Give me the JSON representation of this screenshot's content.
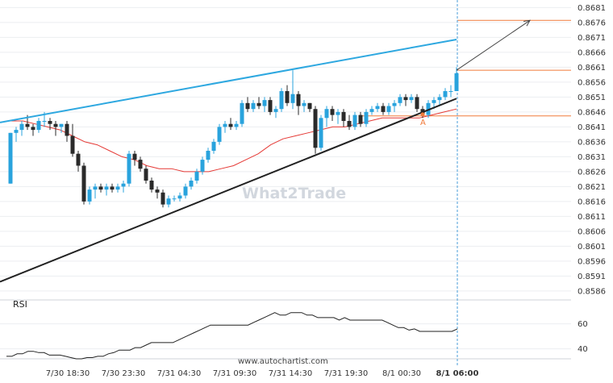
{
  "chart_data": [
    {
      "type": "candlestick",
      "title": "",
      "watermark": "What2Trade",
      "source": "www.autochartist.com",
      "y_ticks": [
        "0.8681",
        "0.8676",
        "0.8671",
        "0.8666",
        "0.8661",
        "0.8656",
        "0.8651",
        "0.8646",
        "0.8641",
        "0.8636",
        "0.8631",
        "0.8626",
        "0.8621",
        "0.8616",
        "0.8611",
        "0.8606",
        "0.8601",
        "0.8596",
        "0.8591",
        "0.8586"
      ],
      "ylim": [
        0.8583,
        0.8683
      ],
      "x_ticks": [
        "7/30 18:30",
        "7/30 23:30",
        "7/31 04:30",
        "7/31 09:30",
        "7/31 14:30",
        "7/31 19:30",
        "8/1 00:30",
        "8/1 06:00"
      ],
      "highlight_tick": "8/1 06:00",
      "candles": [
        [
          0.8622,
          0.8639,
          0.8622,
          0.8639
        ],
        [
          0.8639,
          0.8641,
          0.8636,
          0.864
        ],
        [
          0.864,
          0.8643,
          0.8638,
          0.8642
        ],
        [
          0.8642,
          0.8645,
          0.864,
          0.8641
        ],
        [
          0.8641,
          0.8642,
          0.8638,
          0.864
        ],
        [
          0.864,
          0.8644,
          0.8639,
          0.8643
        ],
        [
          0.8643,
          0.8646,
          0.8641,
          0.8643
        ],
        [
          0.8643,
          0.8644,
          0.864,
          0.8642
        ],
        [
          0.8642,
          0.8643,
          0.8638,
          0.8641
        ],
        [
          0.8641,
          0.8642,
          0.8639,
          0.8642
        ],
        [
          0.8642,
          0.8643,
          0.8636,
          0.8638
        ],
        [
          0.8638,
          0.8642,
          0.8631,
          0.8632
        ],
        [
          0.8632,
          0.8633,
          0.8626,
          0.8628
        ],
        [
          0.8628,
          0.8629,
          0.8615,
          0.8616
        ],
        [
          0.8616,
          0.8621,
          0.8615,
          0.862
        ],
        [
          0.862,
          0.8622,
          0.8617,
          0.8621
        ],
        [
          0.8621,
          0.8622,
          0.8619,
          0.862
        ],
        [
          0.862,
          0.8622,
          0.8618,
          0.8621
        ],
        [
          0.8621,
          0.8622,
          0.8619,
          0.862
        ],
        [
          0.862,
          0.8622,
          0.8619,
          0.8621
        ],
        [
          0.8621,
          0.8623,
          0.8619,
          0.8622
        ],
        [
          0.8622,
          0.8633,
          0.8621,
          0.8632
        ],
        [
          0.8632,
          0.8633,
          0.8628,
          0.863
        ],
        [
          0.863,
          0.8631,
          0.8626,
          0.8627
        ],
        [
          0.8627,
          0.8628,
          0.8622,
          0.8623
        ],
        [
          0.8623,
          0.8624,
          0.8619,
          0.862
        ],
        [
          0.862,
          0.8621,
          0.8617,
          0.8619
        ],
        [
          0.8619,
          0.862,
          0.8614,
          0.8615
        ],
        [
          0.8615,
          0.8618,
          0.8614,
          0.8617
        ],
        [
          0.8617,
          0.8618,
          0.8616,
          0.8617
        ],
        [
          0.8617,
          0.8619,
          0.8616,
          0.8618
        ],
        [
          0.8618,
          0.8622,
          0.8617,
          0.8621
        ],
        [
          0.8621,
          0.8624,
          0.862,
          0.8623
        ],
        [
          0.8623,
          0.8627,
          0.8622,
          0.8626
        ],
        [
          0.8626,
          0.8631,
          0.8625,
          0.863
        ],
        [
          0.863,
          0.8634,
          0.8629,
          0.8633
        ],
        [
          0.8633,
          0.8637,
          0.8632,
          0.8636
        ],
        [
          0.8636,
          0.8642,
          0.8635,
          0.8641
        ],
        [
          0.8641,
          0.8643,
          0.8639,
          0.8642
        ],
        [
          0.8642,
          0.8644,
          0.864,
          0.8641
        ],
        [
          0.8641,
          0.8643,
          0.864,
          0.8642
        ],
        [
          0.8642,
          0.865,
          0.8641,
          0.8649
        ],
        [
          0.8649,
          0.8651,
          0.8646,
          0.8647
        ],
        [
          0.8647,
          0.865,
          0.8646,
          0.8649
        ],
        [
          0.8649,
          0.8651,
          0.8647,
          0.8648
        ],
        [
          0.8648,
          0.8651,
          0.8646,
          0.865
        ],
        [
          0.865,
          0.8651,
          0.8645,
          0.8646
        ],
        [
          0.8646,
          0.8648,
          0.8644,
          0.8647
        ],
        [
          0.8647,
          0.8654,
          0.8646,
          0.8653
        ],
        [
          0.8653,
          0.8655,
          0.8648,
          0.8649
        ],
        [
          0.8649,
          0.866,
          0.8647,
          0.8652
        ],
        [
          0.8652,
          0.8653,
          0.8645,
          0.8648
        ],
        [
          0.8648,
          0.865,
          0.8646,
          0.8649
        ],
        [
          0.8649,
          0.8649,
          0.8646,
          0.8647
        ],
        [
          0.8647,
          0.8648,
          0.8632,
          0.8634
        ],
        [
          0.8634,
          0.8645,
          0.8633,
          0.8644
        ],
        [
          0.8644,
          0.8648,
          0.8641,
          0.8647
        ],
        [
          0.8647,
          0.8648,
          0.8643,
          0.8645
        ],
        [
          0.8645,
          0.8647,
          0.8642,
          0.8646
        ],
        [
          0.8646,
          0.8647,
          0.8641,
          0.8643
        ],
        [
          0.8643,
          0.8645,
          0.864,
          0.8641
        ],
        [
          0.8641,
          0.8646,
          0.864,
          0.8645
        ],
        [
          0.8645,
          0.8646,
          0.8641,
          0.8642
        ],
        [
          0.8642,
          0.8647,
          0.8641,
          0.8646
        ],
        [
          0.8646,
          0.8648,
          0.8645,
          0.8647
        ],
        [
          0.8647,
          0.8649,
          0.8646,
          0.8648
        ],
        [
          0.8648,
          0.8649,
          0.8645,
          0.8646
        ],
        [
          0.8646,
          0.8649,
          0.8645,
          0.8648
        ],
        [
          0.8648,
          0.865,
          0.8646,
          0.8649
        ],
        [
          0.8649,
          0.8652,
          0.8648,
          0.8651
        ],
        [
          0.8651,
          0.8652,
          0.8648,
          0.865
        ],
        [
          0.865,
          0.8652,
          0.8649,
          0.8651
        ],
        [
          0.8651,
          0.8652,
          0.8646,
          0.8647
        ],
        [
          0.8647,
          0.8648,
          0.8644,
          0.8645
        ],
        [
          0.8645,
          0.865,
          0.8644,
          0.8649
        ],
        [
          0.8649,
          0.8651,
          0.8647,
          0.865
        ],
        [
          0.865,
          0.8652,
          0.8648,
          0.8651
        ],
        [
          0.8651,
          0.8654,
          0.865,
          0.8653
        ],
        [
          0.8653,
          0.8655,
          0.8651,
          0.8653
        ],
        [
          0.8653,
          0.8661,
          0.8653,
          0.8659
        ]
      ],
      "moving_average": [
        0.8643,
        0.8643,
        0.8642,
        0.8641,
        0.864,
        0.8638,
        0.8636,
        0.8635,
        0.8633,
        0.8631,
        0.863,
        0.8628,
        0.8627,
        0.8627,
        0.8626,
        0.8626,
        0.8626,
        0.8627,
        0.8628,
        0.863,
        0.8632,
        0.8635,
        0.8637,
        0.8638,
        0.8639,
        0.864,
        0.8641,
        0.8641,
        0.8642,
        0.8643,
        0.8644,
        0.8644,
        0.8644,
        0.8644,
        0.8645,
        0.8646,
        0.8647
      ],
      "resistance_line": {
        "from": [
          0,
          0.86425
        ],
        "to": [
          79,
          0.86703
        ]
      },
      "support_line": {
        "from": [
          0,
          0.85891
        ],
        "to": [
          79,
          0.86505
        ]
      },
      "levels": [
        0.86767,
        0.866,
        0.86447
      ],
      "projection": {
        "from": [
          79,
          0.866
        ],
        "to": [
          92,
          0.86767
        ]
      },
      "marker_label": "A",
      "marker_value": 0.86452,
      "marker_index": 73
    },
    {
      "type": "line",
      "title": "RSI",
      "ylim": [
        32,
        74
      ],
      "y_ticks": [
        "60",
        "40"
      ],
      "values": [
        34,
        34,
        36,
        36,
        38,
        38,
        37,
        37,
        35,
        35,
        35,
        34,
        33,
        32,
        32,
        33,
        33,
        34,
        34,
        36,
        37,
        39,
        39,
        39,
        41,
        41,
        43,
        45,
        45,
        45,
        45,
        45,
        47,
        49,
        51,
        53,
        55,
        57,
        59,
        59,
        59,
        59,
        59,
        59,
        59,
        59,
        61,
        63,
        65,
        67,
        69,
        67,
        67,
        69,
        69,
        69,
        67,
        67,
        65,
        65,
        65,
        65,
        63,
        65,
        63,
        63,
        63,
        63,
        63,
        63,
        63,
        61,
        59,
        57,
        57,
        55,
        56,
        54,
        54,
        54,
        54,
        54,
        54,
        54,
        56
      ]
    }
  ]
}
